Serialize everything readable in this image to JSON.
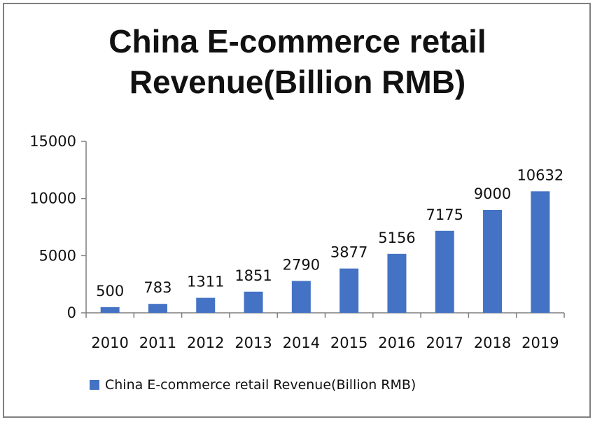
{
  "colors": {
    "bar": "#4472c4",
    "axis": "#7f7f7f"
  },
  "chart_data": {
    "type": "bar",
    "title_lines": [
      "China E-commerce retail",
      "Revenue(Billion RMB)"
    ],
    "categories": [
      "2010",
      "2011",
      "2012",
      "2013",
      "2014",
      "2015",
      "2016",
      "2017",
      "2018",
      "2019"
    ],
    "series": [
      {
        "name": "China E-commerce retail Revenue(Billion RMB)",
        "values": [
          500,
          783,
          1311,
          1851,
          2790,
          3877,
          5156,
          7175,
          9000,
          10632
        ]
      }
    ],
    "data_labels": [
      "500",
      "783",
      "1311",
      "1851",
      "2790",
      "3877",
      "5156",
      "7175",
      "9000",
      "10632"
    ],
    "ylim": [
      0,
      15000
    ],
    "yticks": [
      "0",
      "5000",
      "10000",
      "15000"
    ],
    "grid": false,
    "legend_position": "bottom"
  }
}
